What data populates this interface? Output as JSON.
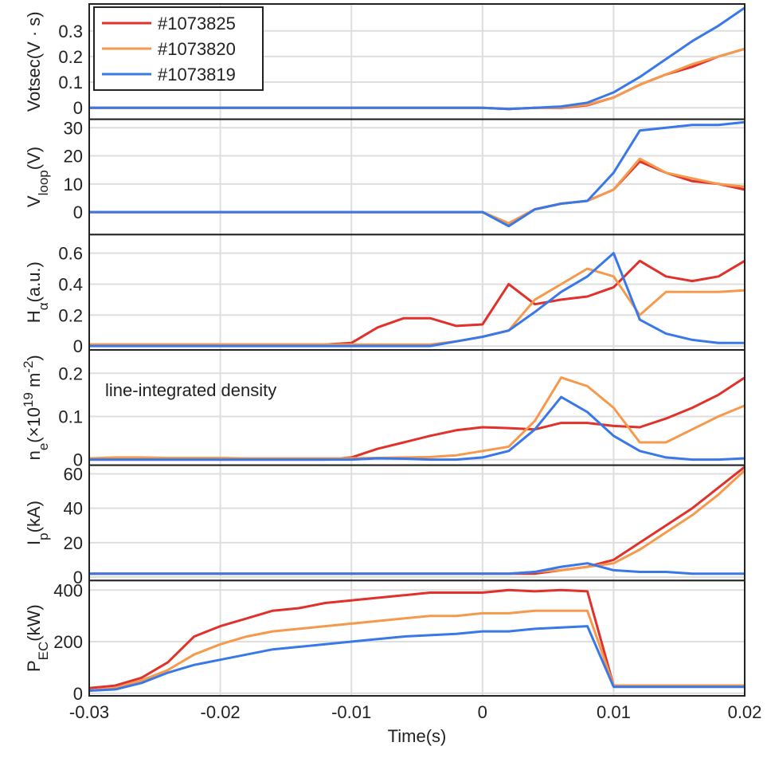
{
  "chart_data": [
    {
      "type": "line",
      "ylabel": [
        {
          "text": "Votsec(V · s)"
        }
      ],
      "x": [
        -0.03,
        -0.028,
        -0.026,
        -0.024,
        -0.022,
        -0.02,
        -0.018,
        -0.016,
        -0.014,
        -0.012,
        -0.01,
        -0.008,
        -0.006,
        -0.004,
        -0.002,
        0,
        0.002,
        0.004,
        0.006,
        0.008,
        0.01,
        0.012,
        0.014,
        0.016,
        0.018,
        0.02
      ],
      "series": [
        {
          "name": "#1073825",
          "color": "#e0312a",
          "values": [
            0,
            0,
            0,
            0,
            0,
            0,
            0,
            0,
            0,
            0,
            0,
            0,
            0,
            0,
            0,
            0,
            -0.005,
            0,
            0,
            0.01,
            0.04,
            0.09,
            0.13,
            0.16,
            0.2,
            0.23
          ]
        },
        {
          "name": "#1073820",
          "color": "#f59a4c",
          "values": [
            0,
            0,
            0,
            0,
            0,
            0,
            0,
            0,
            0,
            0,
            0,
            0,
            0,
            0,
            0,
            0,
            -0.005,
            0,
            0.002,
            0.012,
            0.04,
            0.09,
            0.13,
            0.17,
            0.2,
            0.23
          ]
        },
        {
          "name": "#1073819",
          "color": "#3a78e8",
          "values": [
            0,
            0,
            0,
            0,
            0,
            0,
            0,
            0,
            0,
            0,
            0,
            0,
            0,
            0,
            0,
            0,
            -0.005,
            0,
            0.005,
            0.02,
            0.06,
            0.12,
            0.19,
            0.26,
            0.32,
            0.39
          ]
        }
      ],
      "xlim": [
        -0.03,
        0.02
      ],
      "xticks": [
        -0.03,
        -0.02,
        -0.01,
        0,
        0.01,
        0.02
      ],
      "ylim": [
        -0.045,
        0.405
      ],
      "yticks": [
        0,
        0.1,
        0.2,
        0.3
      ],
      "grid": true,
      "legend": "upper-left"
    },
    {
      "type": "line",
      "ylabel": [
        {
          "text": "V"
        },
        {
          "text": "loop",
          "shift": "sub"
        },
        {
          "text": "(V)"
        }
      ],
      "x": [
        -0.03,
        -0.028,
        -0.026,
        -0.024,
        -0.022,
        -0.02,
        -0.018,
        -0.016,
        -0.014,
        -0.012,
        -0.01,
        -0.008,
        -0.006,
        -0.004,
        -0.002,
        0,
        0.002,
        0.004,
        0.006,
        0.008,
        0.01,
        0.012,
        0.014,
        0.016,
        0.018,
        0.02
      ],
      "series": [
        {
          "name": "#1073825",
          "color": "#e0312a",
          "values": [
            0,
            0,
            0,
            0,
            0,
            0,
            0,
            0,
            0,
            0,
            0,
            0,
            0,
            0,
            0,
            0,
            -4,
            1,
            3,
            4,
            8,
            18,
            14,
            11,
            10,
            8
          ]
        },
        {
          "name": "#1073820",
          "color": "#f59a4c",
          "values": [
            0,
            0,
            0,
            0,
            0,
            0,
            0,
            0,
            0,
            0,
            0,
            0,
            0,
            0,
            0,
            0,
            -4,
            1,
            3,
            4,
            8,
            19,
            14,
            12,
            10,
            9
          ]
        },
        {
          "name": "#1073819",
          "color": "#3a78e8",
          "values": [
            0,
            0,
            0,
            0,
            0,
            0,
            0,
            0,
            0,
            0,
            0,
            0,
            0,
            0,
            0,
            0,
            -5,
            1,
            3,
            4,
            14,
            29,
            30,
            31,
            31,
            32
          ]
        }
      ],
      "xlim": [
        -0.03,
        0.02
      ],
      "xticks": [
        -0.03,
        -0.02,
        -0.01,
        0,
        0.01,
        0.02
      ],
      "ylim": [
        -8,
        33
      ],
      "yticks": [
        0,
        10,
        20,
        30
      ],
      "grid": true
    },
    {
      "type": "line",
      "ylabel": [
        {
          "text": "H"
        },
        {
          "text": "α",
          "shift": "sub"
        },
        {
          "text": "(a.u.)"
        }
      ],
      "x": [
        -0.03,
        -0.028,
        -0.026,
        -0.024,
        -0.022,
        -0.02,
        -0.018,
        -0.016,
        -0.014,
        -0.012,
        -0.01,
        -0.008,
        -0.006,
        -0.004,
        -0.002,
        0,
        0.002,
        0.004,
        0.006,
        0.008,
        0.01,
        0.012,
        0.014,
        0.016,
        0.018,
        0.02
      ],
      "series": [
        {
          "name": "#1073825",
          "color": "#e0312a",
          "values": [
            0.01,
            0.01,
            0.01,
            0.01,
            0.01,
            0.01,
            0.01,
            0.01,
            0.01,
            0.01,
            0.02,
            0.12,
            0.18,
            0.18,
            0.13,
            0.14,
            0.4,
            0.27,
            0.3,
            0.32,
            0.38,
            0.55,
            0.45,
            0.42,
            0.45,
            0.55
          ]
        },
        {
          "name": "#1073820",
          "color": "#f59a4c",
          "values": [
            0.01,
            0.01,
            0.01,
            0.01,
            0.01,
            0.01,
            0.01,
            0.01,
            0.01,
            0.01,
            0.01,
            0.01,
            0.01,
            0.01,
            0.03,
            0.06,
            0.1,
            0.3,
            0.4,
            0.5,
            0.45,
            0.2,
            0.35,
            0.35,
            0.35,
            0.36
          ]
        },
        {
          "name": "#1073819",
          "color": "#3a78e8",
          "values": [
            0,
            0,
            0,
            0,
            0,
            0,
            0,
            0,
            0,
            0,
            0,
            0,
            0,
            0,
            0.03,
            0.06,
            0.1,
            0.22,
            0.35,
            0.45,
            0.6,
            0.17,
            0.08,
            0.04,
            0.02,
            0.02
          ]
        }
      ],
      "xlim": [
        -0.03,
        0.02
      ],
      "xticks": [
        -0.03,
        -0.02,
        -0.01,
        0,
        0.01,
        0.02
      ],
      "ylim": [
        -0.025,
        0.72
      ],
      "yticks": [
        0,
        0.2,
        0.4,
        0.6
      ],
      "grid": true
    },
    {
      "type": "line",
      "ylabel": [
        {
          "text": "n"
        },
        {
          "text": "e",
          "shift": "sub"
        },
        {
          "text": "(×10"
        },
        {
          "text": "19",
          "shift": "super"
        },
        {
          "text": " m"
        },
        {
          "text": "-2",
          "shift": "super"
        },
        {
          "text": ")"
        }
      ],
      "annotation": "line-integrated density",
      "x": [
        -0.03,
        -0.028,
        -0.026,
        -0.024,
        -0.022,
        -0.02,
        -0.018,
        -0.016,
        -0.014,
        -0.012,
        -0.01,
        -0.008,
        -0.006,
        -0.004,
        -0.002,
        0,
        0.002,
        0.004,
        0.006,
        0.008,
        0.01,
        0.012,
        0.014,
        0.016,
        0.018,
        0.02
      ],
      "series": [
        {
          "name": "#1073825",
          "color": "#e0312a",
          "values": [
            0,
            0,
            0,
            0,
            0,
            0,
            0,
            0,
            0,
            0,
            0.005,
            0.025,
            0.04,
            0.055,
            0.068,
            0.075,
            0.073,
            0.07,
            0.085,
            0.085,
            0.078,
            0.075,
            0.095,
            0.12,
            0.15,
            0.19
          ]
        },
        {
          "name": "#1073820",
          "color": "#f59a4c",
          "values": [
            0.003,
            0.005,
            0.005,
            0.004,
            0.004,
            0.004,
            0.003,
            0.003,
            0.003,
            0.003,
            0.003,
            0.004,
            0.005,
            0.006,
            0.01,
            0.02,
            0.03,
            0.09,
            0.19,
            0.17,
            0.12,
            0.04,
            0.04,
            0.07,
            0.1,
            0.125
          ]
        },
        {
          "name": "#1073819",
          "color": "#3a78e8",
          "values": [
            0,
            0,
            0,
            0,
            0,
            0,
            0,
            0,
            0,
            0,
            0,
            0.003,
            0.002,
            0,
            0,
            0.005,
            0.02,
            0.07,
            0.145,
            0.11,
            0.055,
            0.02,
            0.005,
            0,
            0,
            0.003
          ]
        }
      ],
      "xlim": [
        -0.03,
        0.02
      ],
      "xticks": [
        -0.03,
        -0.02,
        -0.01,
        0,
        0.01,
        0.02
      ],
      "ylim": [
        -0.013,
        0.254
      ],
      "yticks": [
        0,
        0.1,
        0.2
      ],
      "grid": true
    },
    {
      "type": "line",
      "ylabel": [
        {
          "text": "I"
        },
        {
          "text": "p",
          "shift": "sub"
        },
        {
          "text": "(kA)"
        }
      ],
      "x": [
        -0.03,
        -0.028,
        -0.026,
        -0.024,
        -0.022,
        -0.02,
        -0.018,
        -0.016,
        -0.014,
        -0.012,
        -0.01,
        -0.008,
        -0.006,
        -0.004,
        -0.002,
        0,
        0.002,
        0.004,
        0.006,
        0.008,
        0.01,
        0.012,
        0.014,
        0.016,
        0.018,
        0.02
      ],
      "series": [
        {
          "name": "#1073825",
          "color": "#e0312a",
          "values": [
            2,
            2,
            2,
            2,
            2,
            2,
            2,
            2,
            2,
            2,
            2,
            2,
            2,
            2,
            2,
            2,
            2,
            2,
            4,
            6,
            10,
            20,
            30,
            40,
            52,
            64
          ]
        },
        {
          "name": "#1073820",
          "color": "#f59a4c",
          "values": [
            2,
            2,
            2,
            2,
            2,
            2,
            2,
            2,
            2,
            2,
            2,
            2,
            2,
            2,
            2,
            2,
            2,
            3,
            4,
            6,
            8,
            16,
            26,
            36,
            48,
            62
          ]
        },
        {
          "name": "#1073819",
          "color": "#3a78e8",
          "values": [
            2,
            2,
            2,
            2,
            2,
            2,
            2,
            2,
            2,
            2,
            2,
            2,
            2,
            2,
            2,
            2,
            2,
            3,
            6,
            8,
            4,
            3,
            3,
            2,
            2,
            2
          ]
        }
      ],
      "xlim": [
        -0.03,
        0.02
      ],
      "xticks": [
        -0.03,
        -0.02,
        -0.01,
        0,
        0.01,
        0.02
      ],
      "ylim": [
        -2,
        65
      ],
      "yticks": [
        0,
        20,
        40,
        60
      ],
      "grid": true
    },
    {
      "type": "line",
      "ylabel": [
        {
          "text": "P"
        },
        {
          "text": "EC",
          "shift": "sub"
        },
        {
          "text": "(kW)"
        }
      ],
      "xlabel": "Time(s)",
      "x": [
        -0.03,
        -0.028,
        -0.026,
        -0.024,
        -0.022,
        -0.02,
        -0.018,
        -0.016,
        -0.014,
        -0.012,
        -0.01,
        -0.008,
        -0.006,
        -0.004,
        -0.002,
        0,
        0.002,
        0.004,
        0.006,
        0.008,
        0.01,
        0.012,
        0.014,
        0.016,
        0.018,
        0.02
      ],
      "series": [
        {
          "name": "#1073825",
          "color": "#e0312a",
          "values": [
            20,
            30,
            60,
            120,
            220,
            260,
            290,
            320,
            330,
            350,
            360,
            370,
            380,
            390,
            390,
            390,
            400,
            395,
            400,
            395,
            30,
            30,
            30,
            30,
            30,
            30
          ]
        },
        {
          "name": "#1073820",
          "color": "#f59a4c",
          "values": [
            10,
            20,
            50,
            90,
            150,
            190,
            220,
            240,
            250,
            260,
            270,
            280,
            290,
            300,
            300,
            310,
            310,
            320,
            320,
            320,
            30,
            30,
            30,
            30,
            30,
            30
          ]
        },
        {
          "name": "#1073819",
          "color": "#3a78e8",
          "values": [
            10,
            15,
            40,
            80,
            110,
            130,
            150,
            170,
            180,
            190,
            200,
            210,
            220,
            225,
            230,
            240,
            240,
            250,
            255,
            260,
            25,
            25,
            25,
            25,
            25,
            25
          ]
        }
      ],
      "xlim": [
        -0.03,
        0.02
      ],
      "xticks": [
        -0.03,
        -0.02,
        -0.01,
        0,
        0.01,
        0.02
      ],
      "ylim": [
        -10,
        437
      ],
      "yticks": [
        0,
        200,
        400
      ],
      "grid": true
    }
  ]
}
